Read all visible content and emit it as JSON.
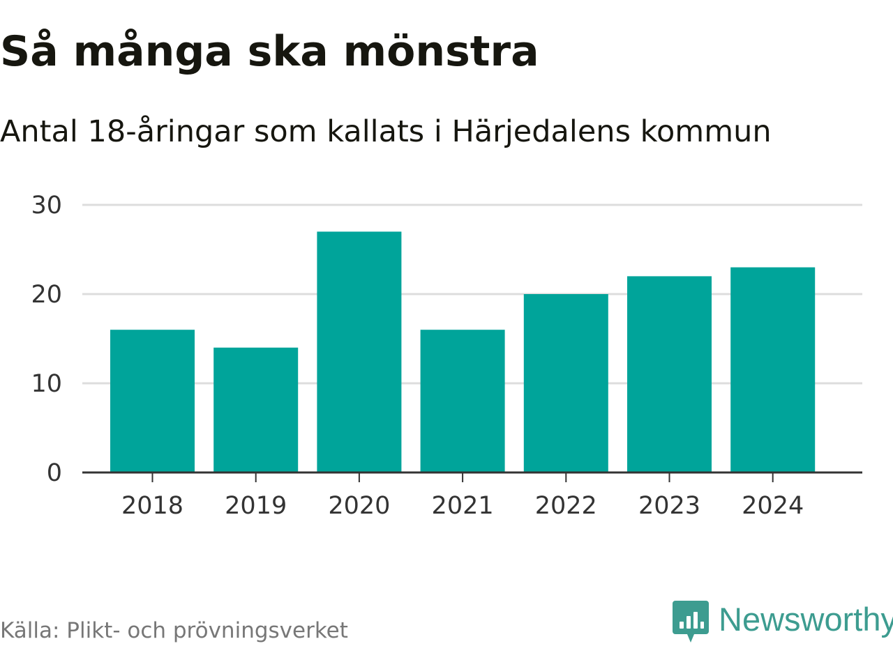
{
  "chart_data": {
    "type": "bar",
    "title": "Så många ska mönstra",
    "subtitle": "Antal 18-åringar som kallats i Härjedalens kommun",
    "categories": [
      "2018",
      "2019",
      "2020",
      "2021",
      "2022",
      "2023",
      "2024"
    ],
    "values": [
      16,
      14,
      27,
      16,
      20,
      22,
      23
    ],
    "ylim": [
      0,
      30
    ],
    "yticks": [
      0,
      10,
      20,
      30
    ],
    "xlabel": "",
    "ylabel": "",
    "grid": true,
    "legend": "none",
    "bar_color": "#00a49a"
  },
  "footer": {
    "source": "Källa: Plikt- och prövningsverket",
    "brand": "Newsworthy",
    "brand_color": "#3d9c90",
    "logo_icon": "newsworthy-logo-icon"
  }
}
